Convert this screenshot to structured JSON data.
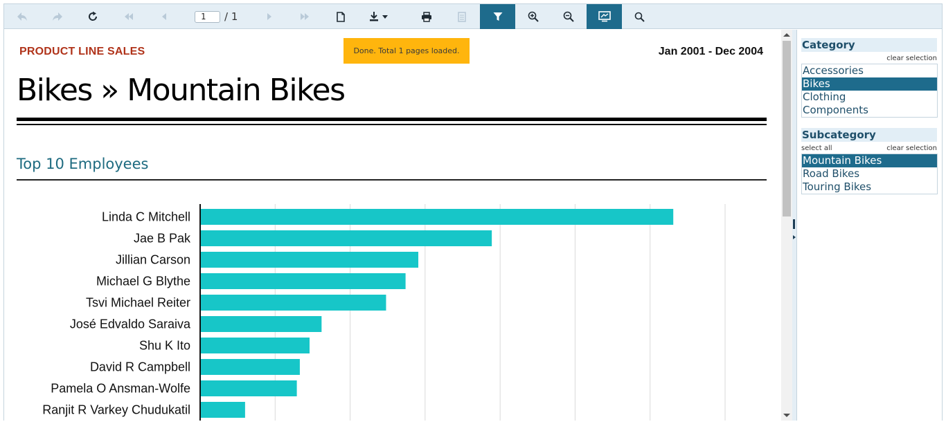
{
  "toolbar": {
    "current_page": "1",
    "page_total": "/ 1",
    "buttons": [
      {
        "name": "back-icon",
        "disabled": true
      },
      {
        "name": "forward-icon",
        "disabled": true
      },
      {
        "name": "refresh-icon",
        "disabled": false
      },
      {
        "name": "first-page-icon",
        "disabled": true
      },
      {
        "name": "prev-page-icon",
        "disabled": true
      },
      {
        "name": "next-page-icon",
        "disabled": true
      },
      {
        "name": "last-page-icon",
        "disabled": true
      },
      {
        "name": "document-icon",
        "disabled": false
      },
      {
        "name": "download-icon",
        "disabled": false
      },
      {
        "name": "print-icon",
        "disabled": false
      },
      {
        "name": "report-icon",
        "disabled": true
      },
      {
        "name": "filter-icon",
        "active": true
      },
      {
        "name": "zoom-in-icon",
        "disabled": false
      },
      {
        "name": "zoom-out-icon",
        "disabled": false
      },
      {
        "name": "fullscreen-icon",
        "active": true
      },
      {
        "name": "search-icon",
        "disabled": false
      }
    ]
  },
  "report": {
    "header": "PRODUCT LINE SALES",
    "date_range": "Jan 2001 - Dec 2004",
    "status_message": "Done. Total 1 pages loaded.",
    "title": "Bikes » Mountain Bikes",
    "section_title": "Top 10 Employees"
  },
  "chart_data": {
    "type": "bar",
    "orientation": "horizontal",
    "categories": [
      "Linda C Mitchell",
      "Jae B Pak",
      "Jillian  Carson",
      "Michael G Blythe",
      "Tsvi Michael Reiter",
      "José Edvaldo Saraiva",
      "Shu K Ito",
      "David R Campbell",
      "Pamela O Ansman-Wolfe",
      "Ranjit R Varkey Chudukatil"
    ],
    "values": [
      6.3,
      3.88,
      2.9,
      2.73,
      2.47,
      1.61,
      1.45,
      1.32,
      1.28,
      0.59
    ],
    "xlim": [
      0,
      7
    ],
    "grid": true,
    "color": "#17c6c8"
  },
  "parameters": {
    "category": {
      "label": "Category",
      "clear_label": "clear selection",
      "options": [
        "Accessories",
        "Bikes",
        "Clothing",
        "Components"
      ],
      "selected": "Bikes"
    },
    "subcategory": {
      "label": "Subcategory",
      "select_all_label": "select all",
      "clear_label": "clear selection",
      "options": [
        "Mountain Bikes",
        "Road Bikes",
        "Touring Bikes"
      ],
      "selected": "Mountain Bikes"
    }
  },
  "colors": {
    "accent": "#1e6b8c",
    "header_red": "#b0331a",
    "toast": "#ffb50d",
    "bar": "#17c6c8"
  }
}
